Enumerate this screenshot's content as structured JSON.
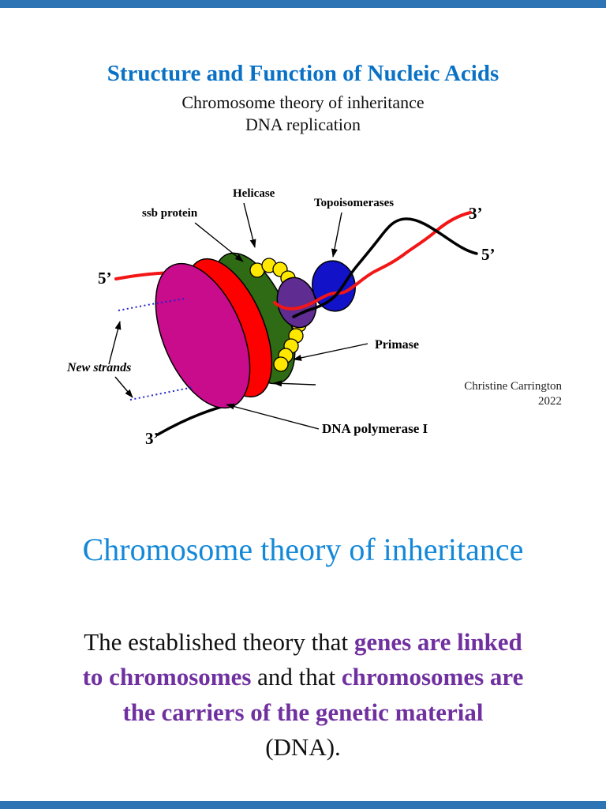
{
  "colors": {
    "bar_blue": "#2d74b5",
    "title_blue": "#0a72c6",
    "heading_blue": "#1488d8",
    "purple": "#7030a0",
    "magenta": "#c80c8c",
    "ellipse_red": "#fd0000",
    "dark_green": "#2f6a14",
    "bead_yellow": "#ffe800",
    "helicase_purple": "#5f2c91",
    "topo_blue": "#1212c8",
    "strand_red": "#f21616",
    "dotted_blue": "#2222cc"
  },
  "slide1": {
    "title": "Structure and Function of Nucleic Acids",
    "subtitle1": "Chromosome theory of inheritance",
    "subtitle2": "DNA replication",
    "labels": {
      "helicase": "Helicase",
      "ssb_protein": "ssb protein",
      "topoisomerases": "Topoisomerases",
      "three_prime_top": "3’",
      "five_prime_right": "5’",
      "five_prime_left": "5’",
      "new_strands": "New strands",
      "primase": "Primase",
      "dna_polymerase": "DNA polymerase I",
      "three_prime_bottom": "3’"
    },
    "credit": {
      "line1": "Christine Carrington",
      "line2": "2022"
    }
  },
  "slide2": {
    "title": "Chromosome theory of inheritance",
    "body": [
      {
        "text": "The established theory that ",
        "style": "normal"
      },
      {
        "text": "genes are linked to chromosomes",
        "style": "bold-purple"
      },
      {
        "text": " and that ",
        "style": "normal"
      },
      {
        "text": "chromosomes are the carriers of the genetic material",
        "style": "bold-purple"
      },
      {
        "text": " (DNA).",
        "style": "normal"
      }
    ]
  }
}
